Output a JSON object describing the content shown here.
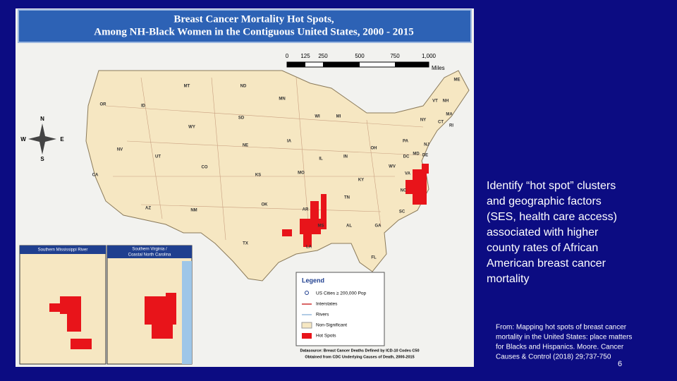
{
  "header": {
    "title_lines": [
      "Breast Cancer Mortality Hot Spots,",
      "Among NH-Black Women in the Contiguous United States, 2000 - 2015"
    ]
  },
  "scale": {
    "labels": [
      "0",
      "125",
      "250",
      "500",
      "750",
      "1,000"
    ],
    "unit": "Miles"
  },
  "compass": {
    "n": "N",
    "s": "S",
    "e": "E",
    "w": "W"
  },
  "states": [
    "MT",
    "ND",
    "MN",
    "OR",
    "ID",
    "SD",
    "WI",
    "MI",
    "WY",
    "NE",
    "IA",
    "IL",
    "IN",
    "OH",
    "PA",
    "NY",
    "NV",
    "UT",
    "CO",
    "KS",
    "MO",
    "KY",
    "WV",
    "VA",
    "NC",
    "TN",
    "CA",
    "AZ",
    "NM",
    "OK",
    "AR",
    "MS",
    "AL",
    "GA",
    "SC",
    "TX",
    "LA",
    "FL",
    "ME",
    "VT",
    "NH",
    "MA",
    "CT",
    "RI",
    "NJ",
    "DE",
    "MD",
    "DC"
  ],
  "insets": [
    {
      "title_lines": [
        "Southern Mississippi River"
      ]
    },
    {
      "title_lines": [
        "Southern Virginia /",
        "Coastal North Carolina"
      ]
    }
  ],
  "legend": {
    "title": "Legend",
    "items": [
      "US Cities ≥ 200,000 Pop",
      "Interstates",
      "Rivers",
      "Non-Significant",
      "Hot Spots"
    ]
  },
  "data_source": [
    "Datasource: Breast Cancer Deaths Defined by ICD-10 Codes C50",
    "Obtained from CDC Underlying Causes of Death, 2000-2015"
  ],
  "body_text": [
    "Identify “hot spot” clusters",
    "and geographic  factors",
    "(SES, health care access)",
    "associated with higher",
    "county rates of African",
    "American breast cancer",
    "mortality"
  ],
  "citation": [
    "From: Mapping hot spots of breast cancer",
    "mortality in the United States: place matters",
    "for Blacks and Hispanics. Moore. Cancer",
    "Causes & Control (2018) 29;737-750"
  ],
  "page_number": "6"
}
